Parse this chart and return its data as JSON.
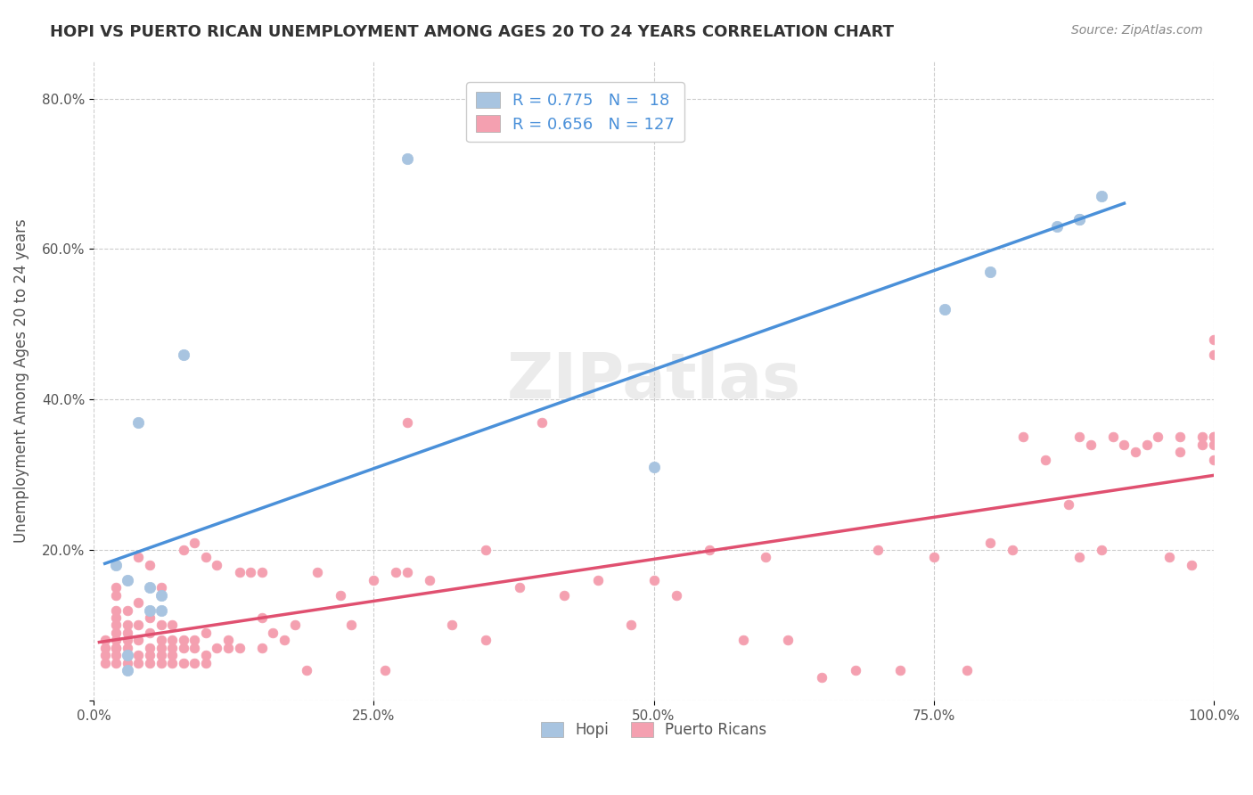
{
  "title": "HOPI VS PUERTO RICAN UNEMPLOYMENT AMONG AGES 20 TO 24 YEARS CORRELATION CHART",
  "source": "Source: ZipAtlas.com",
  "xlabel": "",
  "ylabel": "Unemployment Among Ages 20 to 24 years",
  "xlim": [
    0,
    1.0
  ],
  "ylim": [
    0,
    0.85
  ],
  "xticks": [
    0.0,
    0.25,
    0.5,
    0.75,
    1.0
  ],
  "yticks": [
    0.0,
    0.2,
    0.4,
    0.6,
    0.8
  ],
  "xticklabels": [
    "0.0%",
    "25.0%",
    "50.0%",
    "75.0%",
    "100.0%"
  ],
  "yticklabels": [
    "",
    "20.0%",
    "40.0%",
    "60.0%",
    "80.0%"
  ],
  "hopi_R": 0.775,
  "hopi_N": 18,
  "pr_R": 0.656,
  "pr_N": 127,
  "hopi_color": "#a8c4e0",
  "pr_color": "#f4a0b0",
  "hopi_line_color": "#4a90d9",
  "pr_line_color": "#e05070",
  "legend_text_color": "#4a90d9",
  "watermark": "ZIPatlas",
  "hopi_scatter_x": [
    0.02,
    0.04,
    0.08,
    0.28,
    0.05,
    0.06,
    0.05,
    0.06,
    0.5,
    0.76,
    0.8,
    0.86,
    0.88,
    0.88,
    0.9,
    0.03,
    0.03,
    0.03
  ],
  "hopi_scatter_y": [
    0.18,
    0.37,
    0.46,
    0.72,
    0.15,
    0.14,
    0.12,
    0.12,
    0.31,
    0.52,
    0.57,
    0.63,
    0.64,
    0.64,
    0.67,
    0.16,
    0.04,
    0.06
  ],
  "pr_scatter_x": [
    0.01,
    0.01,
    0.01,
    0.01,
    0.02,
    0.02,
    0.02,
    0.02,
    0.02,
    0.02,
    0.02,
    0.02,
    0.02,
    0.02,
    0.02,
    0.03,
    0.03,
    0.03,
    0.03,
    0.03,
    0.03,
    0.03,
    0.03,
    0.04,
    0.04,
    0.04,
    0.04,
    0.04,
    0.04,
    0.05,
    0.05,
    0.05,
    0.05,
    0.05,
    0.05,
    0.06,
    0.06,
    0.06,
    0.06,
    0.06,
    0.06,
    0.07,
    0.07,
    0.07,
    0.07,
    0.07,
    0.08,
    0.08,
    0.08,
    0.08,
    0.09,
    0.09,
    0.09,
    0.09,
    0.1,
    0.1,
    0.1,
    0.1,
    0.11,
    0.11,
    0.12,
    0.12,
    0.13,
    0.13,
    0.14,
    0.15,
    0.15,
    0.15,
    0.16,
    0.17,
    0.18,
    0.19,
    0.2,
    0.22,
    0.23,
    0.25,
    0.26,
    0.27,
    0.28,
    0.28,
    0.3,
    0.32,
    0.35,
    0.35,
    0.38,
    0.4,
    0.42,
    0.45,
    0.48,
    0.5,
    0.52,
    0.55,
    0.58,
    0.6,
    0.62,
    0.65,
    0.68,
    0.7,
    0.72,
    0.75,
    0.78,
    0.8,
    0.82,
    0.83,
    0.85,
    0.87,
    0.88,
    0.88,
    0.89,
    0.9,
    0.91,
    0.92,
    0.93,
    0.94,
    0.95,
    0.96,
    0.97,
    0.97,
    0.98,
    0.99,
    0.99,
    1.0,
    1.0,
    1.0,
    1.0,
    1.0,
    1.0
  ],
  "pr_scatter_y": [
    0.05,
    0.06,
    0.07,
    0.08,
    0.05,
    0.06,
    0.07,
    0.07,
    0.08,
    0.09,
    0.1,
    0.11,
    0.12,
    0.14,
    0.15,
    0.05,
    0.06,
    0.07,
    0.08,
    0.09,
    0.1,
    0.12,
    0.16,
    0.05,
    0.06,
    0.08,
    0.1,
    0.13,
    0.19,
    0.05,
    0.06,
    0.07,
    0.09,
    0.11,
    0.18,
    0.05,
    0.06,
    0.07,
    0.08,
    0.1,
    0.15,
    0.05,
    0.06,
    0.07,
    0.08,
    0.1,
    0.05,
    0.07,
    0.08,
    0.2,
    0.05,
    0.07,
    0.08,
    0.21,
    0.05,
    0.06,
    0.09,
    0.19,
    0.07,
    0.18,
    0.07,
    0.08,
    0.07,
    0.17,
    0.17,
    0.07,
    0.11,
    0.17,
    0.09,
    0.08,
    0.1,
    0.04,
    0.17,
    0.14,
    0.1,
    0.16,
    0.04,
    0.17,
    0.17,
    0.37,
    0.16,
    0.1,
    0.08,
    0.2,
    0.15,
    0.37,
    0.14,
    0.16,
    0.1,
    0.16,
    0.14,
    0.2,
    0.08,
    0.19,
    0.08,
    0.03,
    0.04,
    0.2,
    0.04,
    0.19,
    0.04,
    0.21,
    0.2,
    0.35,
    0.32,
    0.26,
    0.19,
    0.35,
    0.34,
    0.2,
    0.35,
    0.34,
    0.33,
    0.34,
    0.35,
    0.19,
    0.33,
    0.35,
    0.18,
    0.34,
    0.35,
    0.35,
    0.35,
    0.46,
    0.32,
    0.34,
    0.48
  ]
}
